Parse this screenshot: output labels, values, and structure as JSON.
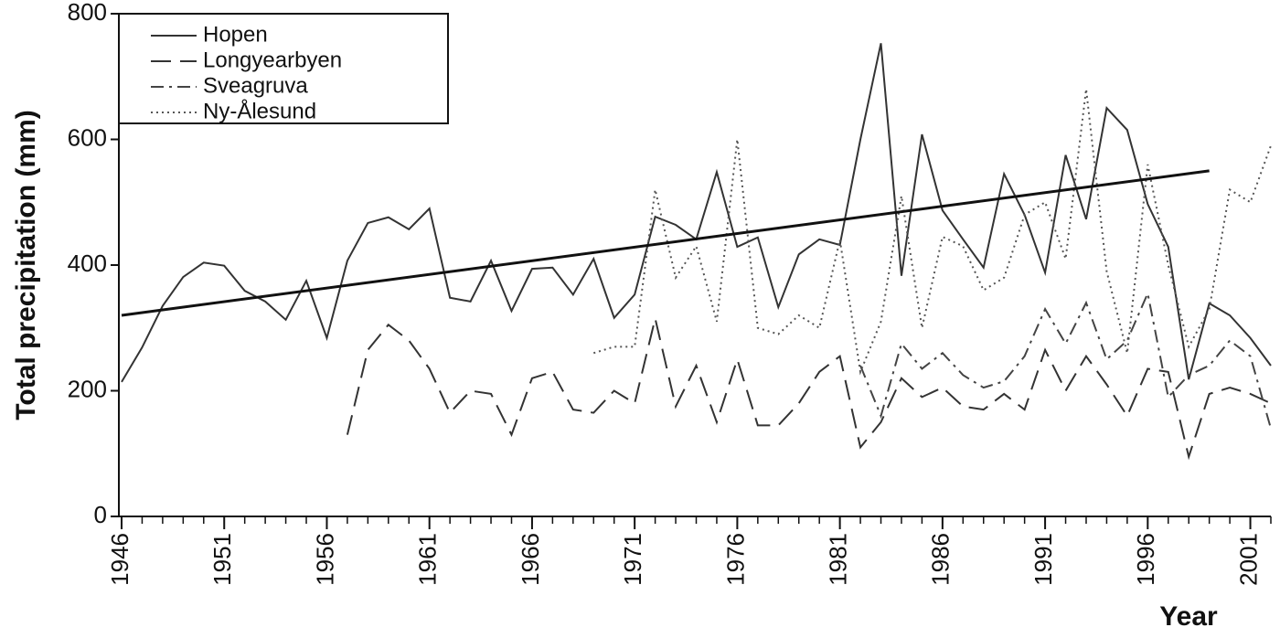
{
  "chart_data": {
    "type": "line",
    "y_label": "Total precipitation (mm)",
    "x_label": "Year",
    "x": [
      1946,
      1947,
      1948,
      1949,
      1950,
      1951,
      1952,
      1953,
      1954,
      1955,
      1956,
      1957,
      1958,
      1959,
      1960,
      1961,
      1962,
      1963,
      1964,
      1965,
      1966,
      1967,
      1968,
      1969,
      1970,
      1971,
      1972,
      1973,
      1974,
      1975,
      1976,
      1977,
      1978,
      1979,
      1980,
      1981,
      1982,
      1983,
      1984,
      1985,
      1986,
      1987,
      1988,
      1989,
      1990,
      1991,
      1992,
      1993,
      1994,
      1995,
      1996,
      1997,
      1998,
      1999,
      2000,
      2001,
      2002
    ],
    "series": [
      {
        "name": "Hopen",
        "color": "#333333",
        "style": "solid",
        "values": [
          214,
          269,
          335,
          381,
          404,
          399,
          359,
          342,
          313,
          375,
          284,
          407,
          467,
          476,
          457,
          490,
          348,
          342,
          407,
          327,
          394,
          396,
          353,
          410,
          316,
          353,
          477,
          464,
          441,
          548,
          429,
          444,
          333,
          417,
          441,
          432,
          600,
          753,
          383,
          608,
          487,
          441,
          396,
          545,
          480,
          388,
          575,
          473,
          650,
          615,
          497,
          429,
          218,
          339,
          320,
          284,
          240
        ]
      },
      {
        "name": "Longyearbyen",
        "color": "#333333",
        "style": "dashed",
        "values": [
          null,
          null,
          null,
          null,
          null,
          null,
          null,
          null,
          null,
          null,
          null,
          130,
          265,
          305,
          280,
          235,
          165,
          200,
          195,
          130,
          220,
          230,
          170,
          165,
          200,
          180,
          315,
          175,
          240,
          150,
          250,
          145,
          145,
          180,
          230,
          255,
          110,
          150,
          220,
          190,
          205,
          175,
          170,
          195,
          170,
          265,
          200,
          255,
          210,
          160,
          235,
          230,
          95,
          195,
          205,
          195,
          180
        ]
      },
      {
        "name": "Sveagruva",
        "color": "#444444",
        "style": "dashdot",
        "values": [
          null,
          null,
          null,
          null,
          null,
          null,
          null,
          null,
          null,
          null,
          null,
          null,
          null,
          null,
          null,
          null,
          null,
          null,
          null,
          null,
          null,
          null,
          null,
          null,
          null,
          null,
          null,
          null,
          null,
          null,
          null,
          null,
          null,
          null,
          null,
          null,
          240,
          160,
          275,
          235,
          260,
          225,
          205,
          215,
          255,
          330,
          275,
          340,
          250,
          280,
          355,
          190,
          225,
          240,
          280,
          255,
          140
        ]
      },
      {
        "name": "Ny-Ålesund",
        "color": "#555555",
        "style": "dotted",
        "values": [
          null,
          null,
          null,
          null,
          null,
          null,
          null,
          null,
          null,
          null,
          null,
          null,
          null,
          null,
          null,
          null,
          null,
          null,
          null,
          null,
          null,
          null,
          null,
          260,
          270,
          270,
          520,
          380,
          430,
          310,
          600,
          300,
          290,
          320,
          300,
          440,
          230,
          310,
          510,
          300,
          445,
          430,
          360,
          380,
          480,
          500,
          410,
          680,
          390,
          260,
          560,
          400,
          270,
          330,
          520,
          500,
          590
        ]
      }
    ],
    "trend": {
      "x": [
        1946,
        1999
      ],
      "values": [
        320,
        550
      ],
      "color": "#111111"
    },
    "xlim": [
      1946,
      2002
    ],
    "xticks": [
      1946,
      1951,
      1956,
      1961,
      1966,
      1971,
      1976,
      1981,
      1986,
      1991,
      1996,
      2001
    ],
    "ylim": [
      0,
      800
    ],
    "yticks": [
      0,
      200,
      400,
      600,
      800
    ]
  }
}
